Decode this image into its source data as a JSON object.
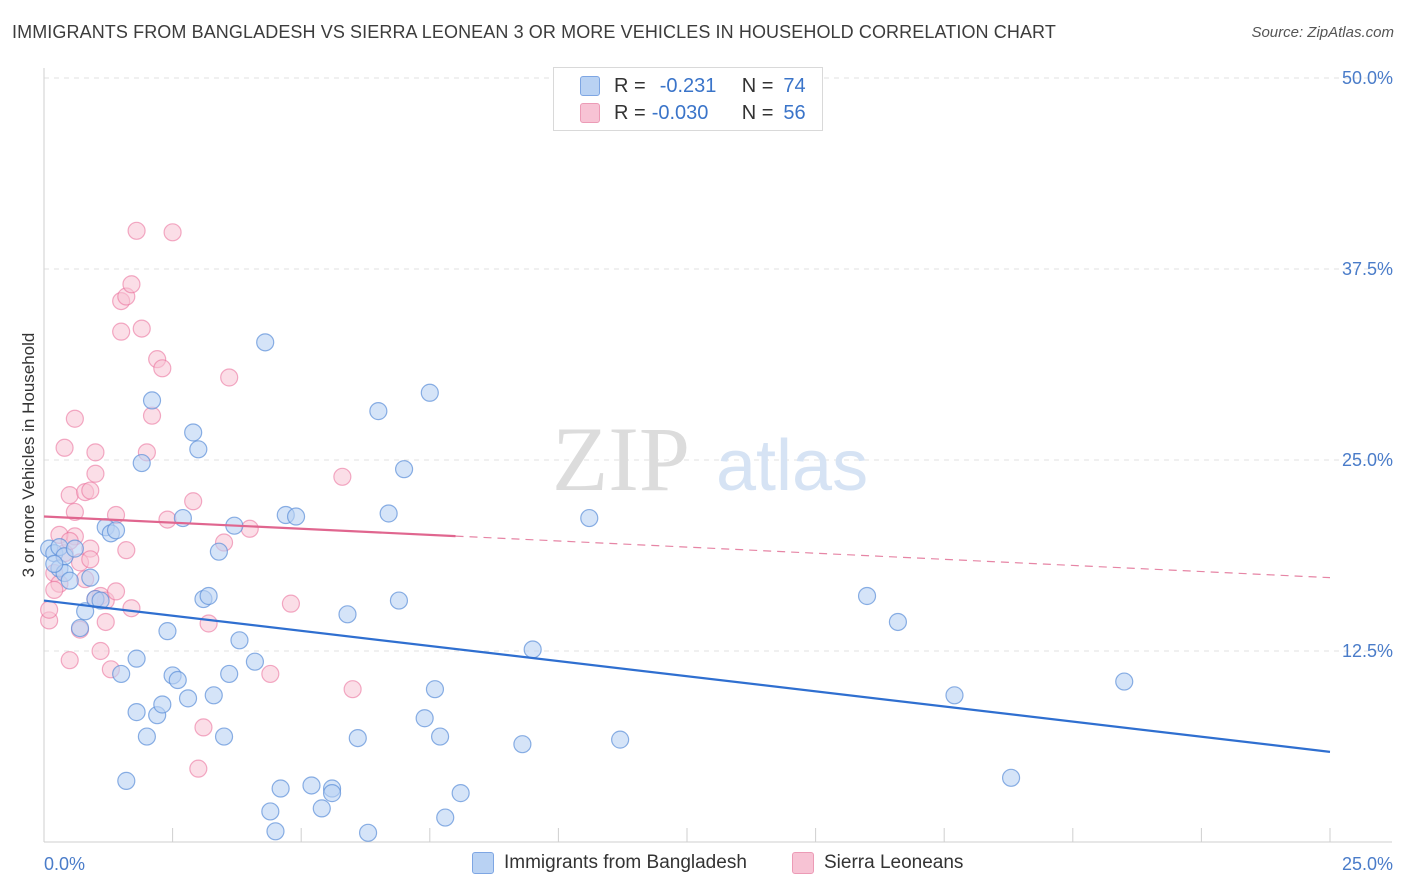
{
  "title": "IMMIGRANTS FROM BANGLADESH VS SIERRA LEONEAN 3 OR MORE VEHICLES IN HOUSEHOLD CORRELATION CHART",
  "source": "Source: ZipAtlas.com",
  "watermark": {
    "zip": "ZIP",
    "atlas": "atlas"
  },
  "legend": {
    "rows": [
      {
        "r_label": "R =",
        "r_value": "-0.231",
        "n_label": "N =",
        "n_value": "74",
        "color": "#a9c8f2"
      },
      {
        "r_label": "R =",
        "r_value": "-0.030",
        "n_label": "N =",
        "n_value": "56",
        "color": "#f6b7cb"
      }
    ]
  },
  "bottom_legend": {
    "items": [
      {
        "label": "Immigrants from Bangladesh",
        "color": "#a9c8f2"
      },
      {
        "label": "Sierra Leoneans",
        "color": "#f6b7cb"
      }
    ]
  },
  "chart_data": {
    "type": "scatter",
    "title": "IMMIGRANTS FROM BANGLADESH VS SIERRA LEONEAN 3 OR MORE VEHICLES IN HOUSEHOLD CORRELATION CHART",
    "xlabel": "",
    "ylabel": "3 or more Vehicles in Household",
    "xlim": [
      0,
      25
    ],
    "ylim": [
      0,
      50
    ],
    "x_ticks": [
      "0.0%",
      "25.0%"
    ],
    "y_ticks": [
      {
        "value": 12.5,
        "label": "12.5%"
      },
      {
        "value": 25.0,
        "label": "25.0%"
      },
      {
        "value": 37.5,
        "label": "37.5%"
      },
      {
        "value": 50.0,
        "label": "50.0%"
      }
    ],
    "grid": true,
    "colors": {
      "blue": "#5b8fd9",
      "blue_fill": "#b9d2f3",
      "pink": "#e96a97",
      "pink_fill": "#f7c3d4",
      "blue_line": "#2f6fd0",
      "pink_line": "#e0668f"
    },
    "series": [
      {
        "name": "Immigrants from Bangladesh",
        "r": -0.231,
        "n": 74,
        "trend": {
          "x": [
            0.0,
            25.0
          ],
          "y": [
            15.8,
            5.9
          ],
          "dashed_after": null
        },
        "points": [
          [
            0.1,
            19.2
          ],
          [
            0.2,
            18.9
          ],
          [
            0.3,
            19.3
          ],
          [
            0.3,
            17.9
          ],
          [
            0.4,
            18.7
          ],
          [
            0.4,
            17.6
          ],
          [
            0.5,
            17.1
          ],
          [
            0.6,
            19.2
          ],
          [
            0.7,
            14.0
          ],
          [
            0.8,
            15.1
          ],
          [
            0.9,
            17.3
          ],
          [
            1.0,
            15.9
          ],
          [
            1.1,
            15.8
          ],
          [
            1.2,
            20.6
          ],
          [
            1.3,
            20.2
          ],
          [
            1.4,
            20.4
          ],
          [
            1.5,
            11.0
          ],
          [
            1.6,
            4.0
          ],
          [
            1.8,
            12.0
          ],
          [
            1.8,
            8.5
          ],
          [
            1.9,
            24.8
          ],
          [
            2.0,
            6.9
          ],
          [
            2.1,
            28.9
          ],
          [
            2.2,
            8.3
          ],
          [
            2.3,
            9.0
          ],
          [
            2.4,
            13.8
          ],
          [
            2.5,
            10.9
          ],
          [
            2.6,
            10.6
          ],
          [
            2.7,
            21.2
          ],
          [
            2.8,
            9.4
          ],
          [
            2.9,
            26.8
          ],
          [
            3.0,
            25.7
          ],
          [
            3.1,
            15.9
          ],
          [
            3.2,
            16.1
          ],
          [
            3.3,
            9.6
          ],
          [
            3.4,
            19.0
          ],
          [
            3.5,
            6.9
          ],
          [
            3.6,
            11.0
          ],
          [
            3.7,
            20.7
          ],
          [
            3.8,
            13.2
          ],
          [
            4.1,
            11.8
          ],
          [
            4.3,
            32.7
          ],
          [
            4.4,
            2.0
          ],
          [
            4.5,
            0.7
          ],
          [
            4.6,
            3.5
          ],
          [
            4.7,
            21.4
          ],
          [
            4.9,
            21.3
          ],
          [
            5.2,
            3.7
          ],
          [
            5.4,
            2.2
          ],
          [
            5.6,
            3.5
          ],
          [
            5.6,
            3.2
          ],
          [
            5.9,
            14.9
          ],
          [
            6.1,
            6.8
          ],
          [
            6.3,
            0.6
          ],
          [
            6.5,
            28.2
          ],
          [
            6.7,
            21.5
          ],
          [
            6.9,
            15.8
          ],
          [
            7.0,
            24.4
          ],
          [
            7.4,
            8.1
          ],
          [
            7.5,
            29.4
          ],
          [
            7.6,
            10.0
          ],
          [
            7.7,
            6.9
          ],
          [
            7.8,
            1.6
          ],
          [
            8.1,
            3.2
          ],
          [
            9.3,
            6.4
          ],
          [
            9.5,
            12.6
          ],
          [
            10.6,
            21.2
          ],
          [
            11.2,
            6.7
          ],
          [
            16.0,
            16.1
          ],
          [
            16.6,
            14.4
          ],
          [
            17.7,
            9.6
          ],
          [
            18.8,
            4.2
          ],
          [
            21.0,
            10.5
          ],
          [
            0.2,
            18.2
          ]
        ]
      },
      {
        "name": "Sierra Leoneans",
        "r": -0.03,
        "n": 56,
        "trend": {
          "x": [
            0.0,
            25.0
          ],
          "y": [
            21.3,
            17.3
          ],
          "solid_until_x": 8.0
        },
        "points": [
          [
            0.1,
            14.5
          ],
          [
            0.1,
            15.2
          ],
          [
            0.2,
            17.6
          ],
          [
            0.3,
            16.9
          ],
          [
            0.4,
            18.9
          ],
          [
            0.4,
            25.8
          ],
          [
            0.5,
            22.7
          ],
          [
            0.5,
            11.9
          ],
          [
            0.6,
            20.0
          ],
          [
            0.6,
            27.7
          ],
          [
            0.7,
            13.9
          ],
          [
            0.8,
            17.2
          ],
          [
            0.8,
            22.9
          ],
          [
            0.9,
            19.2
          ],
          [
            0.9,
            23.0
          ],
          [
            1.0,
            25.5
          ],
          [
            1.0,
            24.1
          ],
          [
            1.1,
            12.5
          ],
          [
            1.1,
            16.1
          ],
          [
            1.2,
            15.8
          ],
          [
            1.3,
            11.3
          ],
          [
            1.4,
            21.4
          ],
          [
            1.5,
            33.4
          ],
          [
            1.5,
            35.4
          ],
          [
            1.6,
            35.7
          ],
          [
            1.7,
            36.5
          ],
          [
            1.8,
            40.0
          ],
          [
            1.9,
            33.6
          ],
          [
            2.0,
            25.5
          ],
          [
            2.1,
            27.9
          ],
          [
            2.2,
            31.6
          ],
          [
            2.3,
            31.0
          ],
          [
            2.5,
            39.9
          ],
          [
            2.9,
            22.3
          ],
          [
            3.0,
            4.8
          ],
          [
            3.1,
            7.5
          ],
          [
            3.2,
            14.3
          ],
          [
            3.5,
            19.6
          ],
          [
            3.6,
            30.4
          ],
          [
            4.0,
            20.5
          ],
          [
            4.4,
            11.0
          ],
          [
            4.8,
            15.6
          ],
          [
            5.8,
            23.9
          ],
          [
            6.0,
            10.0
          ],
          [
            0.3,
            20.1
          ],
          [
            0.5,
            19.7
          ],
          [
            0.7,
            18.3
          ],
          [
            0.9,
            18.5
          ],
          [
            1.0,
            15.9
          ],
          [
            1.2,
            14.4
          ],
          [
            1.4,
            16.4
          ],
          [
            1.6,
            19.1
          ],
          [
            2.4,
            21.1
          ],
          [
            0.2,
            16.5
          ],
          [
            0.6,
            21.6
          ],
          [
            1.7,
            15.3
          ]
        ]
      }
    ]
  }
}
